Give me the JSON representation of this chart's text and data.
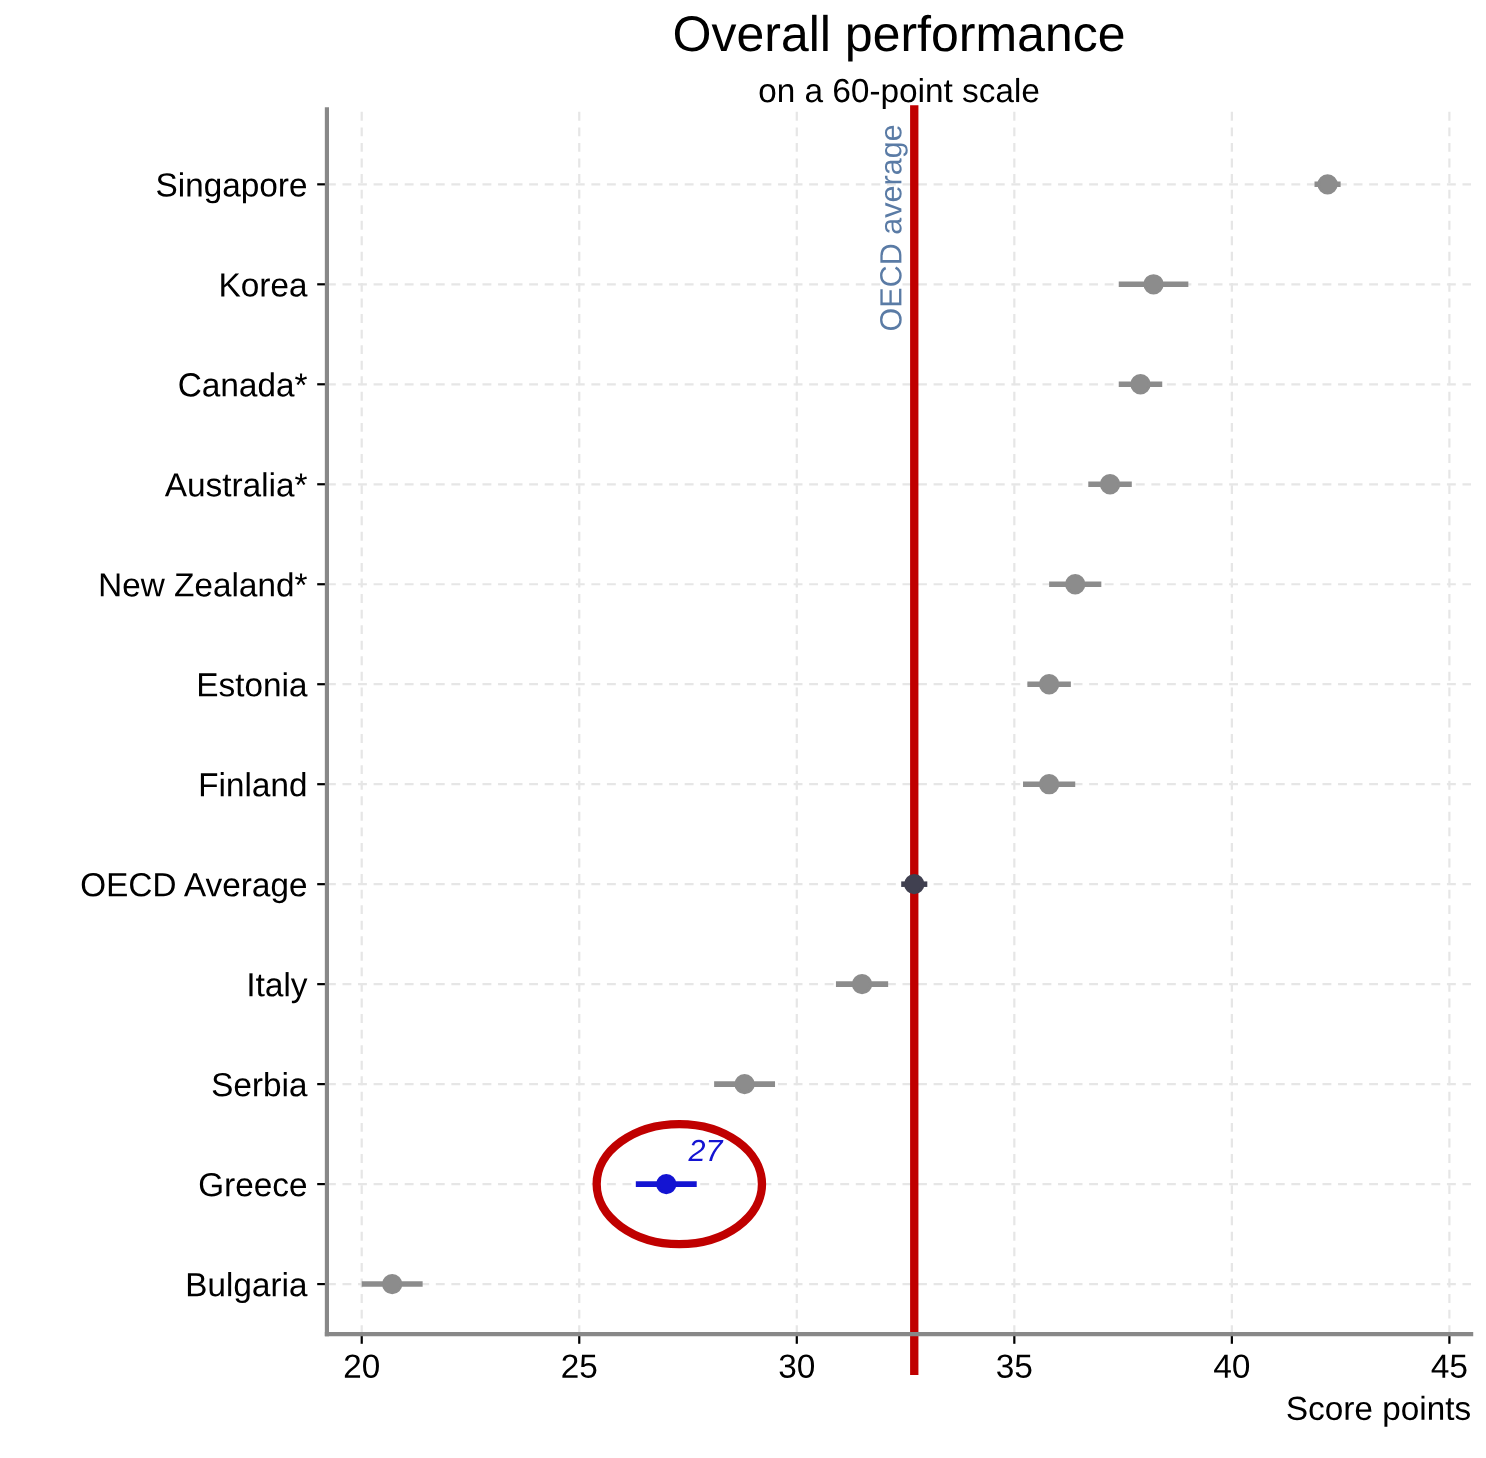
{
  "chart_data": {
    "type": "scatter",
    "title": "Overall performance",
    "subtitle": "on a 60-point scale",
    "xlabel": "Score points",
    "orientation": "horizontal",
    "categories": [
      "Singapore",
      "Korea",
      "Canada*",
      "Australia*",
      "New Zealand*",
      "Estonia",
      "Finland",
      "OECD Average",
      "Italy",
      "Serbia",
      "Greece",
      "Bulgaria"
    ],
    "values": [
      42.2,
      38.2,
      37.9,
      37.2,
      36.4,
      35.8,
      35.8,
      32.7,
      31.5,
      28.8,
      27.0,
      20.7
    ],
    "errors": [
      0.3,
      0.8,
      0.5,
      0.5,
      0.6,
      0.5,
      0.6,
      0.3,
      0.6,
      0.7,
      0.7,
      0.7
    ],
    "colors": [
      "#8c8c8c",
      "#8c8c8c",
      "#8c8c8c",
      "#8c8c8c",
      "#8c8c8c",
      "#8c8c8c",
      "#8c8c8c",
      "#404050",
      "#8c8c8c",
      "#8c8c8c",
      "#1414d2",
      "#8c8c8c"
    ],
    "value_labels": [
      null,
      null,
      null,
      null,
      null,
      null,
      null,
      null,
      null,
      null,
      "27",
      null
    ],
    "xlim": [
      19.2,
      45.5
    ],
    "xticks": [
      20,
      25,
      30,
      35,
      40,
      45
    ],
    "ref_lines": [
      {
        "axis": "x",
        "value": 32.7,
        "label": "OECD average",
        "color": "#c00000"
      }
    ],
    "grid": true,
    "marker": "circle"
  }
}
